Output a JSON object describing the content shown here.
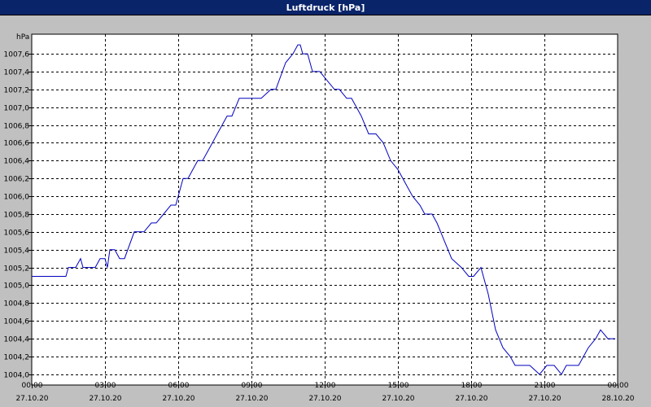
{
  "window": {
    "title": "Luftdruck [hPa]"
  },
  "chart_data": {
    "type": "line",
    "title": "Luftdruck [hPa]",
    "ylabel": "hPa",
    "xlabel": "",
    "ylim": [
      1003.88,
      1007.82
    ],
    "yticks": [
      "1004,0",
      "1004,2",
      "1004,4",
      "1004,6",
      "1004,8",
      "1005,0",
      "1005,2",
      "1005,4",
      "1005,6",
      "1005,8",
      "1006,0",
      "1006,2",
      "1006,4",
      "1006,6",
      "1006,8",
      "1007,0",
      "1007,2",
      "1007,4",
      "1007,6"
    ],
    "xlim_hours": [
      0,
      24
    ],
    "xticks": [
      {
        "time": "00:00",
        "date": "27.10.20"
      },
      {
        "time": "03:00",
        "date": "27.10.20"
      },
      {
        "time": "06:00",
        "date": "27.10.20"
      },
      {
        "time": "09:00",
        "date": "27.10.20"
      },
      {
        "time": "12:00",
        "date": "27.10.20"
      },
      {
        "time": "15:00",
        "date": "27.10.20"
      },
      {
        "time": "18:00",
        "date": "27.10.20"
      },
      {
        "time": "21:00",
        "date": "27.10.20"
      },
      {
        "time": "00:00",
        "date": "28.10.20"
      }
    ],
    "grid": true,
    "series": [
      {
        "color": "#0000c0",
        "x": [
          0,
          1.4,
          1.5,
          1.8,
          2.0,
          2.1,
          2.6,
          2.8,
          2.9,
          3.0,
          3.1,
          3.2,
          3.4,
          3.6,
          3.8,
          4.2,
          4.4,
          4.6,
          4.9,
          5.1,
          5.4,
          5.7,
          5.9,
          6.0,
          6.2,
          6.3,
          6.4,
          6.6,
          6.8,
          7.0,
          7.2,
          7.4,
          7.6,
          7.8,
          8.0,
          8.2,
          8.5,
          8.7,
          9.0,
          9.4,
          9.8,
          10.0,
          10.4,
          10.7,
          10.9,
          11.0,
          11.1,
          11.3,
          11.5,
          11.8,
          12.1,
          12.4,
          12.6,
          12.9,
          13.1,
          13.5,
          13.8,
          14.1,
          14.4,
          14.7,
          15.0,
          15.2,
          15.4,
          15.6,
          15.9,
          16.1,
          16.4,
          16.6,
          16.9,
          17.2,
          17.6,
          17.9,
          18.1,
          18.4,
          18.7,
          19.0,
          19.3,
          19.6,
          19.8,
          20.0,
          20.2,
          20.4,
          20.8,
          21.1,
          21.4,
          21.7,
          21.9,
          22.1,
          22.4,
          22.6,
          22.8,
          23.1,
          23.3,
          23.6,
          23.7,
          23.9
        ],
        "y": [
          1005.1,
          1005.1,
          1005.2,
          1005.2,
          1005.3,
          1005.2,
          1005.2,
          1005.3,
          1005.3,
          1005.3,
          1005.2,
          1005.4,
          1005.4,
          1005.3,
          1005.3,
          1005.6,
          1005.6,
          1005.6,
          1005.7,
          1005.7,
          1005.8,
          1005.9,
          1005.9,
          1006.0,
          1006.2,
          1006.2,
          1006.2,
          1006.3,
          1006.4,
          1006.4,
          1006.5,
          1006.6,
          1006.7,
          1006.8,
          1006.9,
          1006.9,
          1007.1,
          1007.1,
          1007.1,
          1007.1,
          1007.2,
          1007.2,
          1007.5,
          1007.6,
          1007.7,
          1007.7,
          1007.6,
          1007.6,
          1007.4,
          1007.4,
          1007.3,
          1007.2,
          1007.2,
          1007.1,
          1007.1,
          1006.9,
          1006.7,
          1006.7,
          1006.6,
          1006.4,
          1006.3,
          1006.2,
          1006.1,
          1006.0,
          1005.9,
          1005.8,
          1005.8,
          1005.7,
          1005.5,
          1005.3,
          1005.2,
          1005.1,
          1005.1,
          1005.2,
          1004.9,
          1004.5,
          1004.3,
          1004.2,
          1004.1,
          1004.1,
          1004.1,
          1004.1,
          1004.0,
          1004.1,
          1004.1,
          1004.0,
          1004.1,
          1004.1,
          1004.1,
          1004.2,
          1004.3,
          1004.4,
          1004.5,
          1004.4,
          1004.4,
          1004.4
        ]
      }
    ]
  }
}
